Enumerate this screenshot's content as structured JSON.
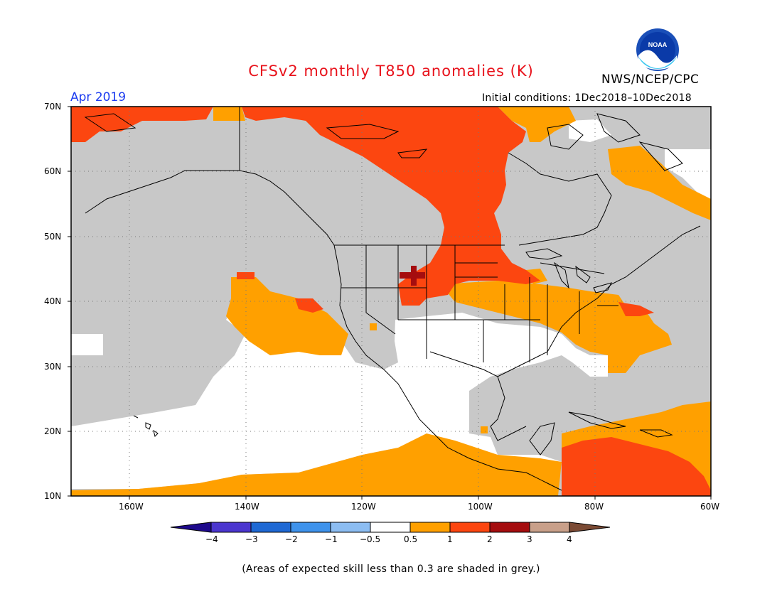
{
  "title": "CFSv2 monthly T850 anomalies (K)",
  "agency": "NWS/NCEP/CPC",
  "logo_text": "NOAA",
  "valid_month": "Apr 2019",
  "initial_conditions": "Initial conditions: 1Dec2018–10Dec2018",
  "lat_labels": [
    "70N",
    "60N",
    "50N",
    "40N",
    "30N",
    "20N",
    "10N"
  ],
  "lon_labels": [
    "160W",
    "140W",
    "120W",
    "100W",
    "80W",
    "60W"
  ],
  "colorbar": {
    "ticks": [
      "−4",
      "−3",
      "−2",
      "−1",
      "−0.5",
      "0.5",
      "1",
      "2",
      "3",
      "4"
    ],
    "colors": [
      "#1e0a8c",
      "#4b36cf",
      "#1f69d4",
      "#3f93ec",
      "#8cbdf2",
      "#ffffff",
      "#ffa000",
      "#fc4610",
      "#a50d0f",
      "#c9a08a",
      "#7b4a34"
    ]
  },
  "map_colors": {
    "low_skill_grey": "#c8c8c8",
    "neutral_white": "#ffffff",
    "anom_0_5_to_1": "#ffa000",
    "anom_1_to_2": "#fc4610",
    "anom_2_to_3": "#a50d0f"
  },
  "footnote": "(Areas of expected skill less than 0.3 are shaded in grey.)"
}
